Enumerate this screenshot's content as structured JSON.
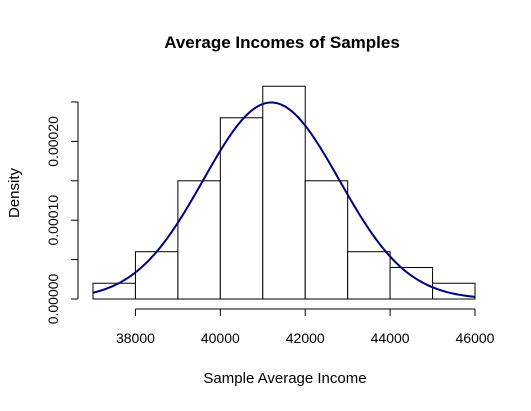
{
  "chart_data": {
    "type": "histogram",
    "title": "Average Incomes of Samples",
    "xlabel": "Sample Average Income",
    "ylabel": "Density",
    "xlim": [
      37000,
      46000
    ],
    "ylim": [
      0,
      0.00025
    ],
    "x_ticks": [
      38000,
      40000,
      42000,
      44000,
      46000
    ],
    "x_tick_labels": [
      "38000",
      "40000",
      "42000",
      "44000",
      "46000"
    ],
    "y_ticks": [
      0,
      5e-05,
      0.0001,
      0.00015,
      0.0002,
      0.00025
    ],
    "y_tick_labels": [
      "0.00000",
      "",
      "0.00010",
      "",
      "0.00020",
      ""
    ],
    "bins": [
      {
        "start": 37000,
        "end": 38000,
        "density": 2e-05
      },
      {
        "start": 38000,
        "end": 39000,
        "density": 6e-05
      },
      {
        "start": 39000,
        "end": 40000,
        "density": 0.00015
      },
      {
        "start": 40000,
        "end": 41000,
        "density": 0.00023
      },
      {
        "start": 41000,
        "end": 42000,
        "density": 0.00027
      },
      {
        "start": 42000,
        "end": 43000,
        "density": 0.00015
      },
      {
        "start": 43000,
        "end": 44000,
        "density": 6e-05
      },
      {
        "start": 44000,
        "end": 45000,
        "density": 4e-05
      },
      {
        "start": 45000,
        "end": 46000,
        "density": 2e-05
      }
    ],
    "density_curve": {
      "distribution": "normal",
      "mean": 41200,
      "sd": 1600,
      "color": "#00007f"
    },
    "bar_fill": "#ffffff",
    "bar_stroke": "#000000",
    "grid": false
  }
}
